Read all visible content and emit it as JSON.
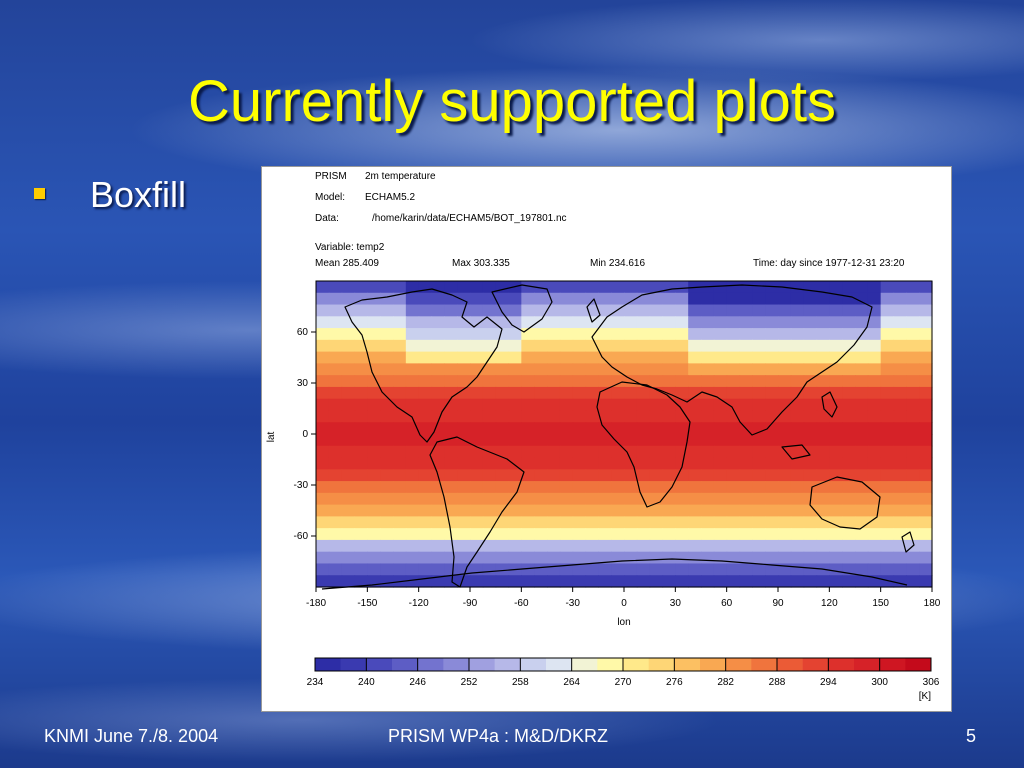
{
  "slide": {
    "title": "Currently supported plots",
    "bullet": "Boxfill",
    "footer_left": "KNMI June 7./8. 2004",
    "footer_center": "PRISM WP4a :  M&D/DKRZ",
    "footer_right": "5",
    "colors": {
      "title": "#ffff00",
      "bullet": "#ffcc00",
      "background": "#1f429d"
    }
  },
  "plot_header": {
    "prism_label": "PRISM",
    "prism_value": "2m temperature",
    "model_label": "Model:",
    "model_value": "ECHAM5.2",
    "data_label": "Data:",
    "data_value": "/home/karin/data/ECHAM5/BOT_197801.nc",
    "variable": "Variable:  temp2",
    "mean": "Mean 285.409",
    "max": "Max 303.335",
    "min": "Min 234.616",
    "time": "Time:   day since 1977-12-31 23:20"
  },
  "chart_data": {
    "type": "heatmap",
    "xlabel": "lon",
    "ylabel": "lat",
    "xlim": [
      -180,
      180
    ],
    "ylim": [
      -90,
      90
    ],
    "x_ticks": [
      "-180",
      "-150",
      "-120",
      "-90",
      "-60",
      "-30",
      "0",
      "30",
      "60",
      "90",
      "120",
      "150",
      "180"
    ],
    "y_ticks": [
      "60",
      "30",
      "0",
      "-30",
      "-60"
    ],
    "colorbar": {
      "ticks": [
        "234",
        "240",
        "246",
        "252",
        "258",
        "264",
        "270",
        "276",
        "282",
        "288",
        "294",
        "300",
        "306"
      ],
      "unit": "[K]",
      "colors": [
        "#2d2da6",
        "#3a3ab0",
        "#4a4abb",
        "#5d5dc5",
        "#7373cf",
        "#8a8ad8",
        "#a0a0e0",
        "#b6b8e8",
        "#c9d0ee",
        "#dde5f2",
        "#f2f3d5",
        "#fff9a8",
        "#ffe98a",
        "#fed676",
        "#fcc062",
        "#f9a852",
        "#f58e46",
        "#f0743d",
        "#eb5b36",
        "#e44331",
        "#dd302c",
        "#d62228",
        "#cf1622",
        "#c40a1b"
      ],
      "range": [
        234,
        306
      ]
    }
  }
}
